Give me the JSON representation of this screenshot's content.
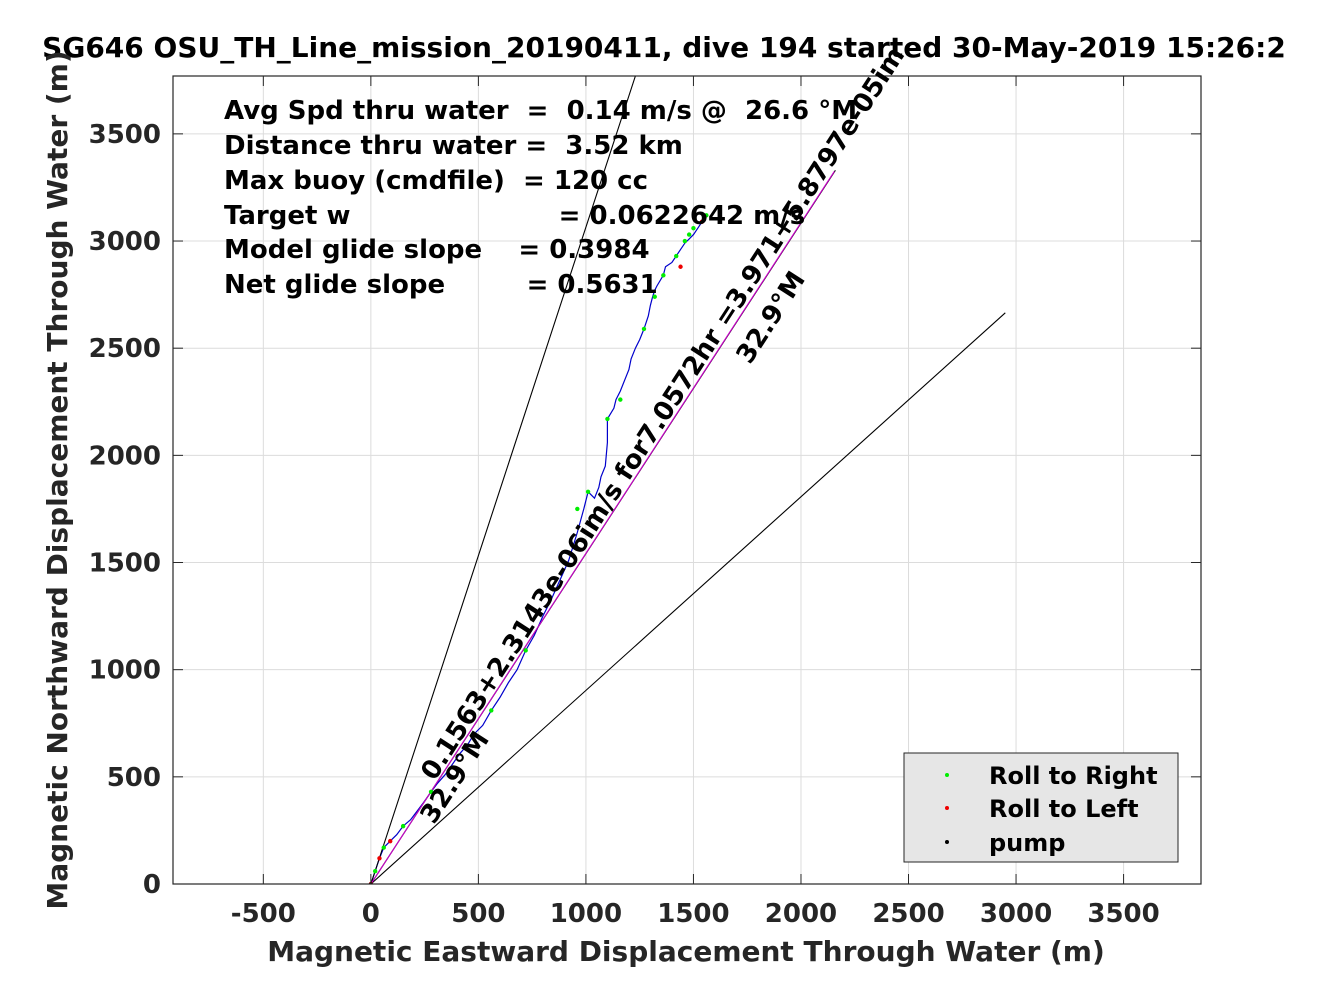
{
  "chart_data": {
    "type": "line",
    "title": "SG646 OSU_TH_Line_mission_20190411, dive 194 started 30-May-2019 15:26:2",
    "xlabel": "Magnetic Eastward Displacement Through Water (m)",
    "ylabel": "Magnetic Northward Displacement Through Water (m)",
    "xlim": [
      -920,
      3860
    ],
    "ylim": [
      0,
      3770
    ],
    "xticks": [
      -500,
      0,
      500,
      1000,
      1500,
      2000,
      2500,
      3000,
      3500
    ],
    "yticks": [
      0,
      500,
      1000,
      1500,
      2000,
      2500,
      3000,
      3500
    ],
    "grid": true,
    "stats": [
      "Avg Spd thru water  =  0.14 m/s @  26.6 °M",
      "Distance thru water =  3.52 km",
      "Max buoy (cmdfile)  = 120 cc",
      "Target w                       = 0.0622642 m/s",
      "Model glide slope    = 0.3984",
      "Net glide slope         = 0.5631"
    ],
    "rotated_annotations": [
      "0.1563+2.3143e-06im/s for7.0572hr =3.971+5.8797e-05im",
      "32.9°M",
      "32.9°M"
    ],
    "series": [
      {
        "kind": "track",
        "color": "#0000cc",
        "x": [
          0,
          20,
          40,
          60,
          90,
          120,
          150,
          185,
          215,
          245,
          280,
          310,
          345,
          380,
          415,
          450,
          480,
          520,
          560,
          600,
          640,
          680,
          720,
          760,
          800,
          840,
          880,
          920,
          960,
          990,
          1010,
          1040,
          1060,
          1070,
          1090,
          1100,
          1100,
          1130,
          1140,
          1160,
          1180,
          1200,
          1210,
          1230,
          1250,
          1270,
          1290,
          1300,
          1310,
          1320,
          1330,
          1360,
          1370,
          1400,
          1420,
          1440,
          1460,
          1480,
          1500,
          1520,
          1540,
          1560
        ],
        "y": [
          0,
          60,
          120,
          170,
          200,
          230,
          270,
          300,
          340,
          380,
          430,
          470,
          510,
          560,
          610,
          650,
          700,
          740,
          810,
          870,
          940,
          1000,
          1090,
          1160,
          1250,
          1330,
          1420,
          1510,
          1640,
          1750,
          1830,
          1800,
          1850,
          1900,
          1950,
          2060,
          2170,
          2220,
          2260,
          2300,
          2350,
          2400,
          2450,
          2500,
          2540,
          2590,
          2650,
          2700,
          2740,
          2770,
          2790,
          2840,
          2880,
          2900,
          2930,
          2960,
          2990,
          3010,
          3030,
          3060,
          3090,
          3120
        ]
      },
      {
        "kind": "heading-line",
        "color": "#000000",
        "x": [
          0,
          1230
        ],
        "y": [
          0,
          3770
        ]
      },
      {
        "kind": "heading-line",
        "color": "#000000",
        "x": [
          0,
          2950
        ],
        "y": [
          0,
          2665
        ]
      },
      {
        "kind": "current-line",
        "color": "#000000",
        "x": [
          0,
          2160
        ],
        "y": [
          0,
          3330
        ]
      },
      {
        "kind": "current-line",
        "color": "#cc00cc",
        "x": [
          0,
          2155
        ],
        "y": [
          0,
          3325
        ]
      },
      {
        "kind": "markers",
        "name": "Roll to Right",
        "color": "#00ee00",
        "x": [
          20,
          60,
          150,
          280,
          480,
          560,
          720,
          960,
          1010,
          1100,
          1160,
          1270,
          1320,
          1360,
          1420,
          1460,
          1480,
          1500,
          1560
        ],
        "y": [
          60,
          170,
          270,
          430,
          700,
          810,
          1090,
          1750,
          1830,
          2170,
          2260,
          2590,
          2740,
          2840,
          2930,
          3000,
          3030,
          3060,
          3120
        ]
      },
      {
        "kind": "markers",
        "name": "Roll to Left",
        "color": "#ee0000",
        "x": [
          0,
          40,
          90,
          1440,
          1540
        ],
        "y": [
          0,
          120,
          200,
          2880,
          3090
        ]
      },
      {
        "kind": "markers",
        "name": "pump",
        "color": "#000000",
        "x": [
          0
        ],
        "y": [
          0
        ]
      }
    ],
    "legend": {
      "placement": "bottom-right",
      "entries": [
        "Roll to Right",
        "Roll to Left",
        "pump"
      ],
      "colors": [
        "#00ee00",
        "#ee0000",
        "#000000"
      ]
    }
  }
}
